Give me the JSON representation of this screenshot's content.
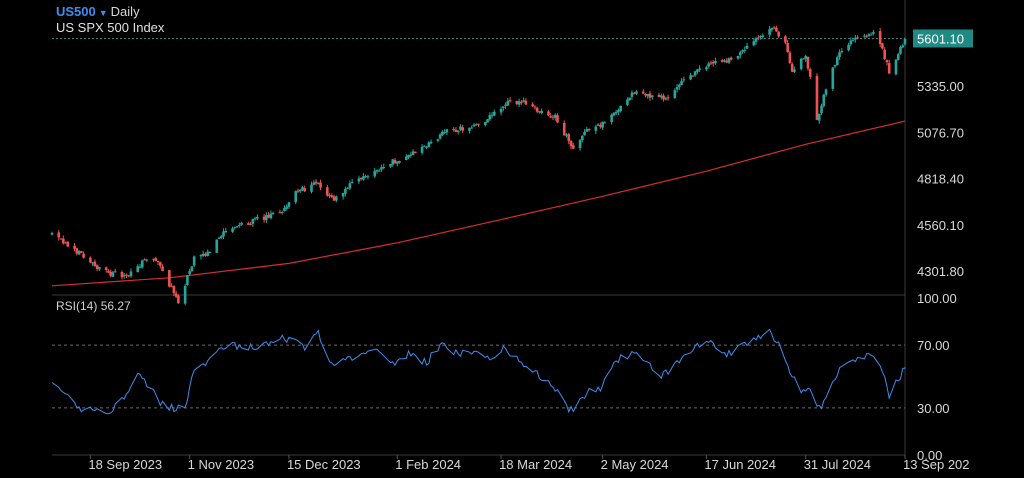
{
  "header": {
    "symbol": "US500",
    "timeframe": "Daily",
    "name": "US SPX 500 Index"
  },
  "rsi_label": "RSI(14)",
  "rsi_value": "56.27",
  "colors": {
    "background": "#000000",
    "up_candle": "#26a69a",
    "down_candle": "#ef5350",
    "moving_average": "#d32f2f",
    "rsi_line": "#3d8ef0",
    "last_price_tag": "#1f8a83",
    "accent": "#3d8ef0"
  },
  "chart_data": [
    {
      "type": "candlestick",
      "title": "US SPX 500 Index",
      "price_axis_labels": [
        "5601.10",
        "5335.00",
        "5076.70",
        "4818.40",
        "4560.10",
        "4301.80"
      ],
      "last_price": 5601.1,
      "ylim": [
        4180,
        5760
      ],
      "x_tick_labels": [
        "18 Sep 2023",
        "1 Nov 2023",
        "15 Dec 2023",
        "1 Feb 2024",
        "18 Mar 2024",
        "2 May 2024",
        "17 Jun 2024",
        "31 Jul 2024",
        "13 Sep 202"
      ],
      "x_range": [
        "2023-09-01",
        "2024-09-13"
      ],
      "close_path": [
        [
          "2023-09-01",
          4510
        ],
        [
          "2023-09-07",
          4450
        ],
        [
          "2023-09-15",
          4390
        ],
        [
          "2023-09-21",
          4320
        ],
        [
          "2023-09-27",
          4290
        ],
        [
          "2023-10-04",
          4270
        ],
        [
          "2023-10-12",
          4360
        ],
        [
          "2023-10-17",
          4370
        ],
        [
          "2023-10-23",
          4230
        ],
        [
          "2023-10-27",
          4130
        ],
        [
          "2023-11-03",
          4370
        ],
        [
          "2023-11-09",
          4400
        ],
        [
          "2023-11-14",
          4500
        ],
        [
          "2023-11-24",
          4560
        ],
        [
          "2023-12-01",
          4590
        ],
        [
          "2023-12-05",
          4600
        ],
        [
          "2023-12-12",
          4640
        ],
        [
          "2023-12-18",
          4740
        ],
        [
          "2023-12-27",
          4790
        ],
        [
          "2024-01-04",
          4700
        ],
        [
          "2024-01-10",
          4770
        ],
        [
          "2024-01-19",
          4840
        ],
        [
          "2024-01-26",
          4890
        ],
        [
          "2024-02-06",
          4950
        ],
        [
          "2024-02-14",
          5000
        ],
        [
          "2024-02-22",
          5080
        ],
        [
          "2024-03-05",
          5110
        ],
        [
          "2024-03-12",
          5150
        ],
        [
          "2024-03-21",
          5240
        ],
        [
          "2024-03-28",
          5250
        ],
        [
          "2024-04-04",
          5200
        ],
        [
          "2024-04-11",
          5160
        ],
        [
          "2024-04-16",
          5050
        ],
        [
          "2024-04-19",
          4980
        ],
        [
          "2024-04-26",
          5100
        ],
        [
          "2024-05-03",
          5130
        ],
        [
          "2024-05-10",
          5220
        ],
        [
          "2024-05-15",
          5300
        ],
        [
          "2024-05-23",
          5280
        ],
        [
          "2024-05-31",
          5270
        ],
        [
          "2024-06-06",
          5350
        ],
        [
          "2024-06-12",
          5410
        ],
        [
          "2024-06-20",
          5470
        ],
        [
          "2024-06-27",
          5480
        ],
        [
          "2024-07-03",
          5530
        ],
        [
          "2024-07-10",
          5600
        ],
        [
          "2024-07-16",
          5660
        ],
        [
          "2024-07-22",
          5580
        ],
        [
          "2024-07-25",
          5420
        ],
        [
          "2024-07-31",
          5500
        ],
        [
          "2024-08-02",
          5380
        ],
        [
          "2024-08-05",
          5150
        ],
        [
          "2024-08-09",
          5330
        ],
        [
          "2024-08-15",
          5530
        ],
        [
          "2024-08-20",
          5590
        ],
        [
          "2024-08-26",
          5620
        ],
        [
          "2024-08-30",
          5640
        ],
        [
          "2024-09-03",
          5530
        ],
        [
          "2024-09-06",
          5420
        ],
        [
          "2024-09-10",
          5510
        ],
        [
          "2024-09-13",
          5601
        ]
      ],
      "moving_average_path": [
        [
          "2023-09-01",
          4220
        ],
        [
          "2023-10-23",
          4265
        ],
        [
          "2023-12-15",
          4345
        ],
        [
          "2024-02-01",
          4460
        ],
        [
          "2024-03-18",
          4590
        ],
        [
          "2024-05-02",
          4720
        ],
        [
          "2024-06-17",
          4860
        ],
        [
          "2024-07-31",
          5010
        ],
        [
          "2024-09-13",
          5140
        ]
      ]
    },
    {
      "type": "line",
      "title": "RSI(14)",
      "ylim": [
        0,
        100
      ],
      "y_tick_labels": [
        "100.00",
        "70.00",
        "30.00",
        "0.00"
      ],
      "levels": [
        70,
        30
      ],
      "points": [
        [
          "2023-09-01",
          45
        ],
        [
          "2023-09-07",
          38
        ],
        [
          "2023-09-13",
          29
        ],
        [
          "2023-09-19",
          30
        ],
        [
          "2023-09-25",
          27
        ],
        [
          "2023-10-02",
          35
        ],
        [
          "2023-10-09",
          52
        ],
        [
          "2023-10-13",
          46
        ],
        [
          "2023-10-19",
          33
        ],
        [
          "2023-10-25",
          30
        ],
        [
          "2023-10-30",
          29
        ],
        [
          "2023-11-03",
          54
        ],
        [
          "2023-11-08",
          59
        ],
        [
          "2023-11-14",
          66
        ],
        [
          "2023-11-20",
          70
        ],
        [
          "2023-11-28",
          69
        ],
        [
          "2023-12-05",
          71
        ],
        [
          "2023-12-12",
          74
        ],
        [
          "2023-12-18",
          73
        ],
        [
          "2023-12-22",
          69
        ],
        [
          "2023-12-28",
          78
        ],
        [
          "2024-01-04",
          55
        ],
        [
          "2024-01-10",
          61
        ],
        [
          "2024-01-17",
          66
        ],
        [
          "2024-01-24",
          68
        ],
        [
          "2024-01-31",
          57
        ],
        [
          "2024-02-06",
          64
        ],
        [
          "2024-02-14",
          59
        ],
        [
          "2024-02-21",
          72
        ],
        [
          "2024-02-28",
          64
        ],
        [
          "2024-03-06",
          67
        ],
        [
          "2024-03-13",
          62
        ],
        [
          "2024-03-20",
          68
        ],
        [
          "2024-03-28",
          57
        ],
        [
          "2024-04-04",
          50
        ],
        [
          "2024-04-10",
          44
        ],
        [
          "2024-04-16",
          31
        ],
        [
          "2024-04-19",
          28
        ],
        [
          "2024-04-25",
          40
        ],
        [
          "2024-05-01",
          43
        ],
        [
          "2024-05-07",
          60
        ],
        [
          "2024-05-14",
          64
        ],
        [
          "2024-05-20",
          62
        ],
        [
          "2024-05-28",
          50
        ],
        [
          "2024-06-04",
          58
        ],
        [
          "2024-06-11",
          68
        ],
        [
          "2024-06-18",
          72
        ],
        [
          "2024-06-25",
          63
        ],
        [
          "2024-07-02",
          70
        ],
        [
          "2024-07-09",
          73
        ],
        [
          "2024-07-15",
          78
        ],
        [
          "2024-07-19",
          72
        ],
        [
          "2024-07-24",
          52
        ],
        [
          "2024-07-30",
          40
        ],
        [
          "2024-08-02",
          44
        ],
        [
          "2024-08-05",
          30
        ],
        [
          "2024-08-08",
          33
        ],
        [
          "2024-08-13",
          50
        ],
        [
          "2024-08-19",
          61
        ],
        [
          "2024-08-26",
          63
        ],
        [
          "2024-08-30",
          64
        ],
        [
          "2024-09-04",
          50
        ],
        [
          "2024-09-06",
          38
        ],
        [
          "2024-09-10",
          48
        ],
        [
          "2024-09-13",
          56.27
        ]
      ]
    }
  ]
}
